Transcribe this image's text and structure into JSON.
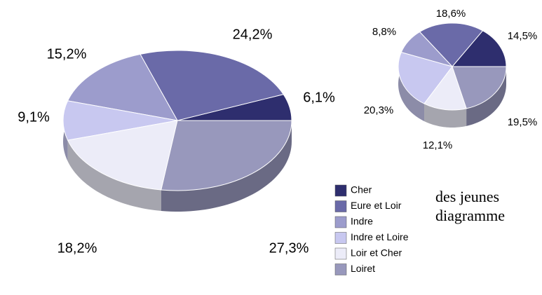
{
  "chart_data": [
    {
      "type": "pie",
      "categories": [
        "Cher",
        "Eure et Loir",
        "Indre",
        "Indre et Loire",
        "Loir et Cher",
        "Loiret"
      ],
      "colors": [
        "#2e2e6e",
        "#6a6aa8",
        "#9c9ccc",
        "#c8c8f0",
        "#ececf8",
        "#9898bc"
      ],
      "values": [
        6.1,
        24.2,
        15.2,
        9.1,
        18.2,
        27.3
      ],
      "value_labels": [
        "6,1%",
        "24,2%",
        "15,2%",
        "9,1%",
        "18,2%",
        "27,3%"
      ]
    },
    {
      "type": "pie",
      "values": [
        14.5,
        18.6,
        8.8,
        20.3,
        12.1,
        19.5
      ],
      "value_labels": [
        "14,5%",
        "18,6%",
        "8,8%",
        "20,3%",
        "12,1%",
        "19,5%"
      ]
    }
  ],
  "page_text": {
    "lines": [
      "des jeunes",
      "diagramme"
    ]
  }
}
